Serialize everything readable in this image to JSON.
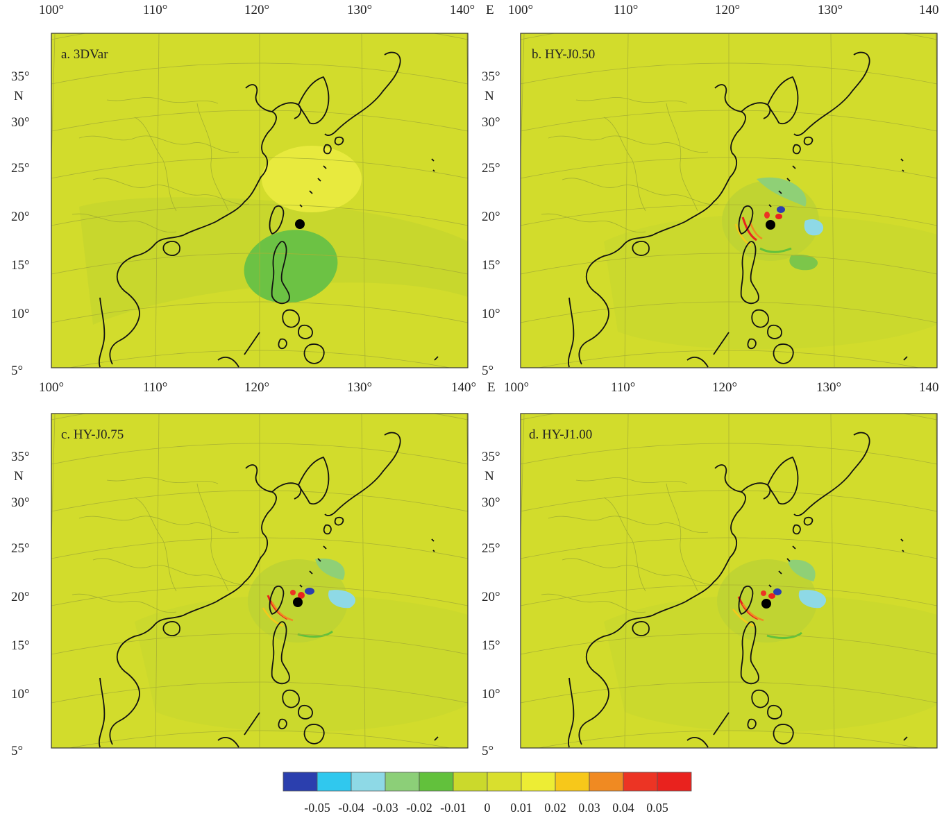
{
  "colors": {
    "field": "#d2dc2c",
    "positive_light": "#eeee4a",
    "negative_light": "#b8d63a",
    "negative_mid": "#7cc64a",
    "coast": "#111111",
    "grid": "#a9b233",
    "frame": "#333333",
    "dot": "#000000"
  },
  "panels": [
    {
      "id": "a",
      "label": "a. 3DVar",
      "lon_labels": [
        "100°",
        "110°",
        "120°",
        "130°",
        "140°"
      ],
      "lon_suffix": "E",
      "lat_labels": [
        "35°",
        "30°",
        "25°",
        "20°",
        "15°",
        "10°",
        "5°"
      ],
      "lat_unit": "N"
    },
    {
      "id": "b",
      "label": "b. HY-J0.50",
      "lon_labels": [
        "100°",
        "110°",
        "120°",
        "130°",
        "140"
      ],
      "lon_suffix": "",
      "lat_labels": [
        "35°",
        "30°",
        "25°",
        "20°",
        "15°",
        "10°",
        "5°"
      ],
      "lat_unit": "N"
    },
    {
      "id": "c",
      "label": "c. HY-J0.75",
      "lon_labels": [
        "100°",
        "110°",
        "120°",
        "130°",
        "140°"
      ],
      "lon_suffix": "E",
      "lat_labels": [
        "35°",
        "30°",
        "25°",
        "20°",
        "15°",
        "10°",
        "5°"
      ],
      "lat_unit": "N"
    },
    {
      "id": "d",
      "label": "d. HY-J1.00",
      "lon_labels": [
        "100°",
        "110°",
        "120°",
        "130°",
        "140"
      ],
      "lon_suffix": "",
      "lat_labels": [
        "35°",
        "30°",
        "25°",
        "20°",
        "15°",
        "10°",
        "5°"
      ],
      "lat_unit": "N"
    }
  ],
  "legend": {
    "colors": [
      "#2b3fae",
      "#30c8ee",
      "#8ed9e6",
      "#8ccf78",
      "#62c13c",
      "#cbd92c",
      "#d9df2e",
      "#eded34",
      "#f7c81a",
      "#f08a22",
      "#ec3424",
      "#e9221e"
    ],
    "labels": [
      "-0.05",
      "-0.04",
      "-0.03",
      "-0.02",
      "-0.01",
      "0",
      "0.01",
      "0.02",
      "0.03",
      "0.04",
      "0.05"
    ]
  }
}
